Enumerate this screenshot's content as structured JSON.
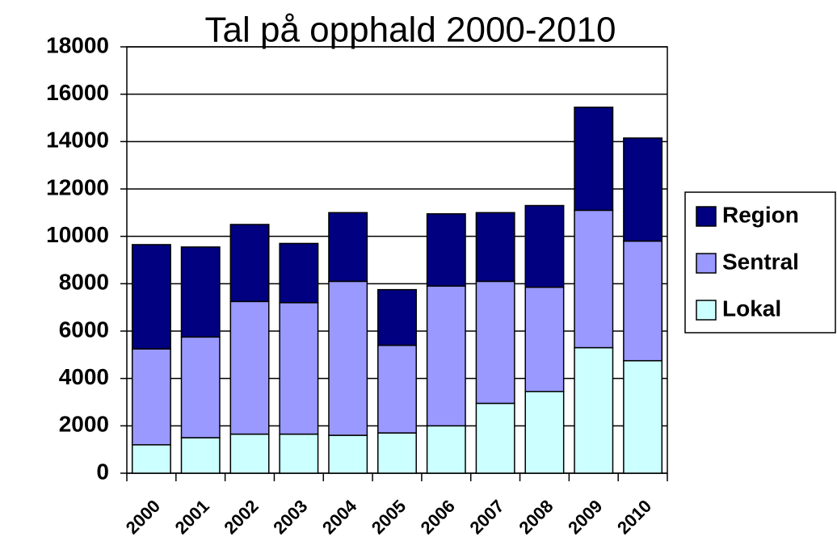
{
  "chart_data": {
    "type": "stacked-bar",
    "title": "Tal på opphald 2000-2010",
    "categories": [
      "2000",
      "2001",
      "2002",
      "2003",
      "2004",
      "2005",
      "2006",
      "2007",
      "2008",
      "2009",
      "2010"
    ],
    "series": [
      {
        "name": "Lokal",
        "color": "#ccffff",
        "values": [
          1200,
          1500,
          1650,
          1650,
          1600,
          1700,
          2000,
          2950,
          3450,
          5300,
          4750
        ]
      },
      {
        "name": "Sentral",
        "color": "#9999ff",
        "values": [
          4050,
          4250,
          5600,
          5550,
          6500,
          3700,
          5900,
          5150,
          4400,
          5800,
          5050
        ]
      },
      {
        "name": "Region",
        "color": "#000080",
        "values": [
          4400,
          3800,
          3250,
          2500,
          2900,
          2350,
          3050,
          2900,
          3450,
          4350,
          4350
        ]
      }
    ],
    "ylim": [
      0,
      18000
    ],
    "yticks": [
      0,
      2000,
      4000,
      6000,
      8000,
      10000,
      12000,
      14000,
      16000,
      18000
    ],
    "grid": true,
    "legend": "right"
  }
}
